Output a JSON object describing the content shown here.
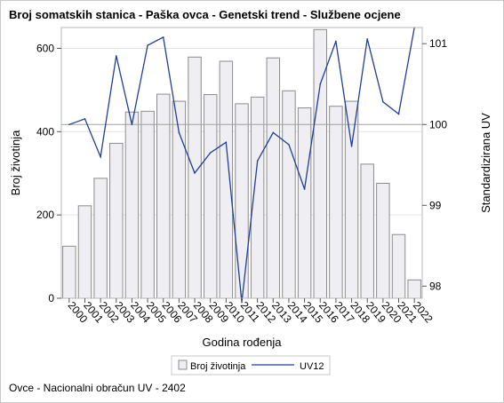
{
  "chart_data": {
    "type": "bar+line",
    "title": "Broj somatskih stanica - Paška ovca - Genetski trend - Službene ocjene",
    "xlabel": "Godina rođenja",
    "ylabel_left": "Broj životinja",
    "ylabel_right": "Standardizirana UV",
    "categories": [
      "2000",
      "2001",
      "2002",
      "2003",
      "2004",
      "2005",
      "2006",
      "2007",
      "2008",
      "2009",
      "2010",
      "2011",
      "2012",
      "2013",
      "2014",
      "2015",
      "2016",
      "2017",
      "2018",
      "2019",
      "2020",
      "2021",
      "2022"
    ],
    "series": [
      {
        "name": "Broj životinja",
        "type": "bar",
        "axis": "left",
        "values": [
          125,
          222,
          288,
          372,
          447,
          449,
          490,
          473,
          579,
          489,
          569,
          467,
          483,
          577,
          498,
          457,
          645,
          461,
          473,
          322,
          276,
          153,
          44
        ]
      },
      {
        "name": "UV12",
        "type": "line",
        "axis": "right",
        "values": [
          100.0,
          100.07,
          99.6,
          100.85,
          100.0,
          100.98,
          101.08,
          99.9,
          99.4,
          99.65,
          99.78,
          97.8,
          99.55,
          99.9,
          99.75,
          99.2,
          100.5,
          101.03,
          99.73,
          101.06,
          100.28,
          100.13,
          101.2
        ]
      }
    ],
    "ylim_left": [
      0,
      650
    ],
    "yticks_left": [
      0,
      200,
      400,
      600
    ],
    "ylim_right": [
      97.85,
      101.2
    ],
    "yticks_right": [
      98,
      99,
      100,
      101
    ],
    "reference_line_right": 100,
    "legend_position": "bottom",
    "grid": true
  },
  "colors": {
    "bar_fill": "#eeeef3",
    "bar_stroke": "#8c8c8c",
    "line": "#1f3f99",
    "grid": "#e4e4e4",
    "reference": "#a0a0a0",
    "wall_border": "#b8b8b8"
  },
  "legend": {
    "items": [
      "Broj životinja",
      "UV12"
    ]
  },
  "footnote": "Ovce - Nacionalni obračun UV - 2402"
}
